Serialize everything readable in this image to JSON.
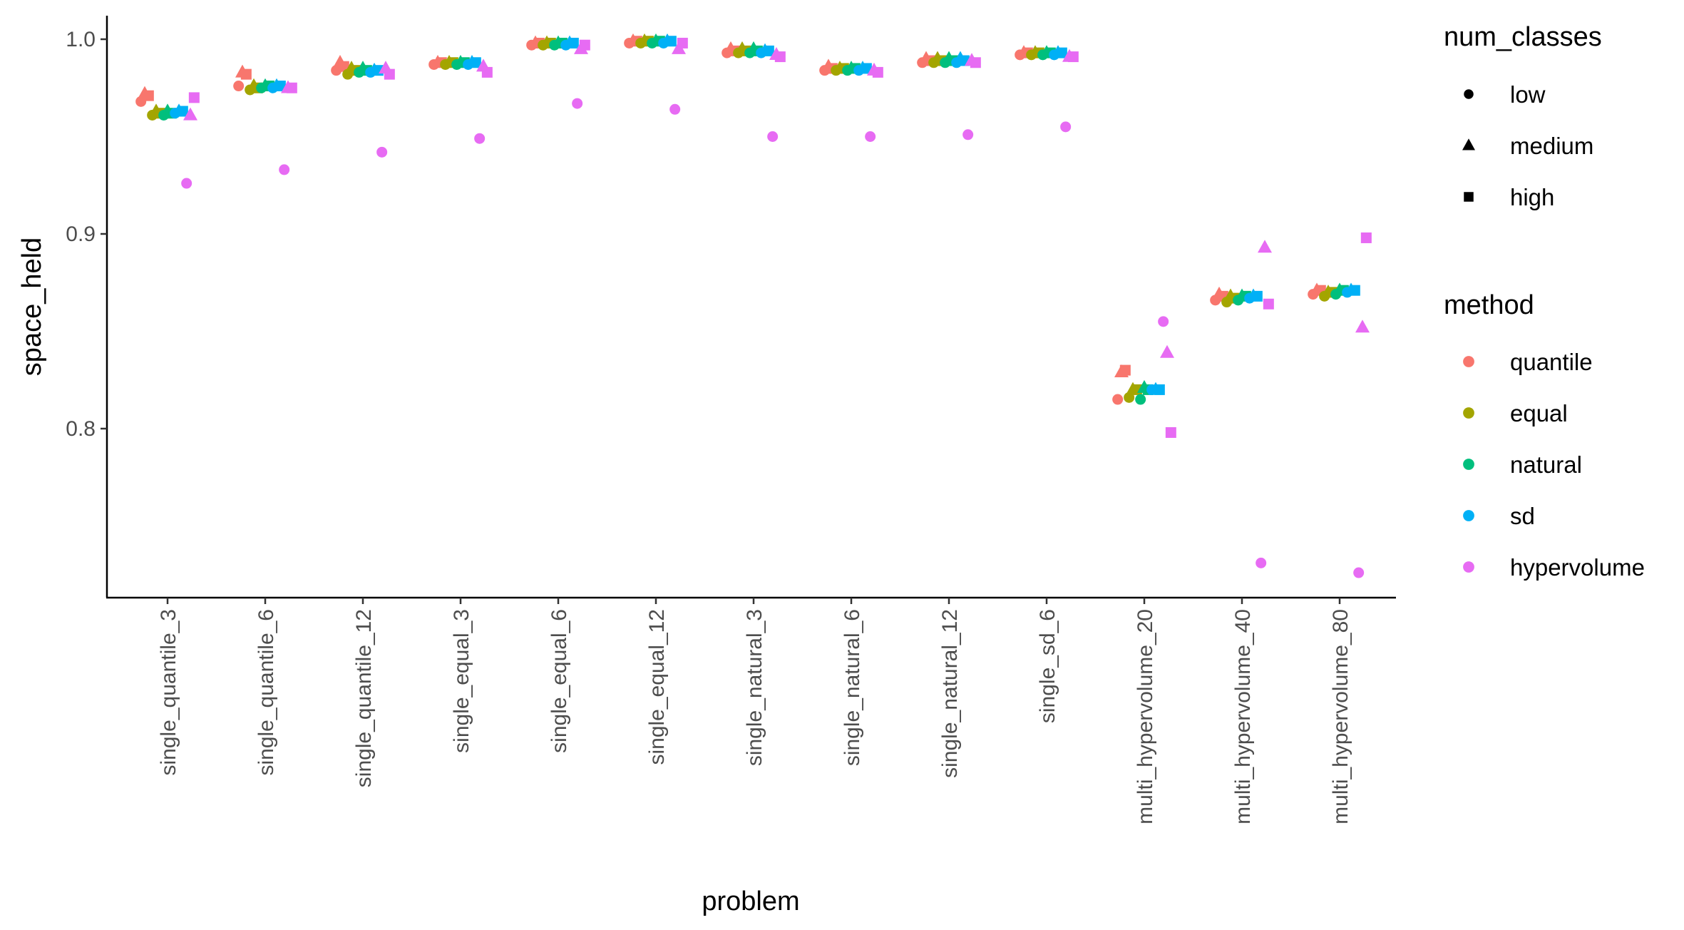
{
  "chart_data": {
    "type": "scatter",
    "xlabel": "problem",
    "ylabel": "space_held",
    "categories": [
      "single_quantile_3",
      "single_quantile_6",
      "single_quantile_12",
      "single_equal_3",
      "single_equal_6",
      "single_equal_12",
      "single_natural_3",
      "single_natural_6",
      "single_natural_12",
      "single_sd_6",
      "multi_hypervolume_20",
      "multi_hypervolume_40",
      "multi_hypervolume_80"
    ],
    "ylim": [
      0.715,
      1.01
    ],
    "yticks": [
      0.8,
      0.9,
      1.0
    ],
    "ytick_labels": [
      "0.8",
      "0.9",
      "1.0"
    ],
    "grid": false,
    "legend_placement": "right",
    "legends": [
      {
        "title": "num_classes",
        "entries": [
          {
            "label": "low",
            "shape": "circle"
          },
          {
            "label": "medium",
            "shape": "triangle"
          },
          {
            "label": "high",
            "shape": "square"
          }
        ]
      },
      {
        "title": "method",
        "entries": [
          {
            "label": "quantile",
            "color": "#F8766D"
          },
          {
            "label": "equal",
            "color": "#A3A500"
          },
          {
            "label": "natural",
            "color": "#00BF7D"
          },
          {
            "label": "sd",
            "color": "#00B0F6"
          },
          {
            "label": "hypervolume",
            "color": "#E76BF3"
          }
        ]
      }
    ],
    "methods": [
      "quantile",
      "equal",
      "natural",
      "sd",
      "hypervolume"
    ],
    "num_classes": [
      "low",
      "medium",
      "high"
    ],
    "values": {
      "quantile": [
        [
          0.968,
          0.972,
          0.971
        ],
        [
          0.976,
          0.983,
          0.982
        ],
        [
          0.984,
          0.988,
          0.986
        ],
        [
          0.987,
          0.988,
          0.988
        ],
        [
          0.997,
          0.998,
          0.998
        ],
        [
          0.998,
          0.999,
          0.999
        ],
        [
          0.993,
          0.995,
          0.994
        ],
        [
          0.984,
          0.986,
          0.985
        ],
        [
          0.988,
          0.99,
          0.989
        ],
        [
          0.992,
          0.993,
          0.993
        ],
        [
          0.815,
          0.829,
          0.83
        ],
        [
          0.866,
          0.869,
          0.868
        ],
        [
          0.869,
          0.871,
          0.871
        ]
      ],
      "equal": [
        [
          0.961,
          0.963,
          0.962
        ],
        [
          0.974,
          0.976,
          0.975
        ],
        [
          0.982,
          0.985,
          0.984
        ],
        [
          0.987,
          0.988,
          0.988
        ],
        [
          0.997,
          0.998,
          0.998
        ],
        [
          0.998,
          0.999,
          0.999
        ],
        [
          0.993,
          0.995,
          0.994
        ],
        [
          0.984,
          0.985,
          0.985
        ],
        [
          0.988,
          0.99,
          0.989
        ],
        [
          0.992,
          0.993,
          0.993
        ],
        [
          0.816,
          0.82,
          0.82
        ],
        [
          0.865,
          0.868,
          0.867
        ],
        [
          0.868,
          0.87,
          0.87
        ]
      ],
      "natural": [
        [
          0.961,
          0.963,
          0.962
        ],
        [
          0.975,
          0.976,
          0.976
        ],
        [
          0.983,
          0.985,
          0.984
        ],
        [
          0.987,
          0.988,
          0.988
        ],
        [
          0.997,
          0.998,
          0.998
        ],
        [
          0.998,
          0.999,
          0.999
        ],
        [
          0.993,
          0.995,
          0.994
        ],
        [
          0.984,
          0.985,
          0.985
        ],
        [
          0.988,
          0.99,
          0.989
        ],
        [
          0.992,
          0.993,
          0.993
        ],
        [
          0.815,
          0.821,
          0.82
        ],
        [
          0.866,
          0.868,
          0.868
        ],
        [
          0.869,
          0.871,
          0.871
        ]
      ],
      "sd": [
        [
          0.962,
          0.963,
          0.963
        ],
        [
          0.975,
          0.976,
          0.976
        ],
        [
          0.983,
          0.984,
          0.984
        ],
        [
          0.987,
          0.988,
          0.988
        ],
        [
          0.997,
          0.998,
          0.998
        ],
        [
          0.998,
          0.999,
          0.999
        ],
        [
          0.993,
          0.994,
          0.994
        ],
        [
          0.984,
          0.985,
          0.985
        ],
        [
          0.988,
          0.99,
          0.989
        ],
        [
          0.992,
          0.993,
          0.993
        ],
        [
          0.82,
          0.82,
          0.82
        ],
        [
          0.867,
          0.868,
          0.868
        ],
        [
          0.87,
          0.871,
          0.871
        ]
      ],
      "hypervolume": [
        [
          0.926,
          0.961,
          0.97
        ],
        [
          0.933,
          0.975,
          0.975
        ],
        [
          0.942,
          0.985,
          0.982
        ],
        [
          0.949,
          0.986,
          0.983
        ],
        [
          0.967,
          0.995,
          0.997
        ],
        [
          0.964,
          0.995,
          0.998
        ],
        [
          0.95,
          0.992,
          0.991
        ],
        [
          0.95,
          0.984,
          0.983
        ],
        [
          0.951,
          0.989,
          0.988
        ],
        [
          0.955,
          0.991,
          0.991
        ],
        [
          0.855,
          0.839,
          0.798
        ],
        [
          0.731,
          0.893,
          0.864
        ],
        [
          0.726,
          0.852,
          0.898
        ]
      ]
    }
  }
}
